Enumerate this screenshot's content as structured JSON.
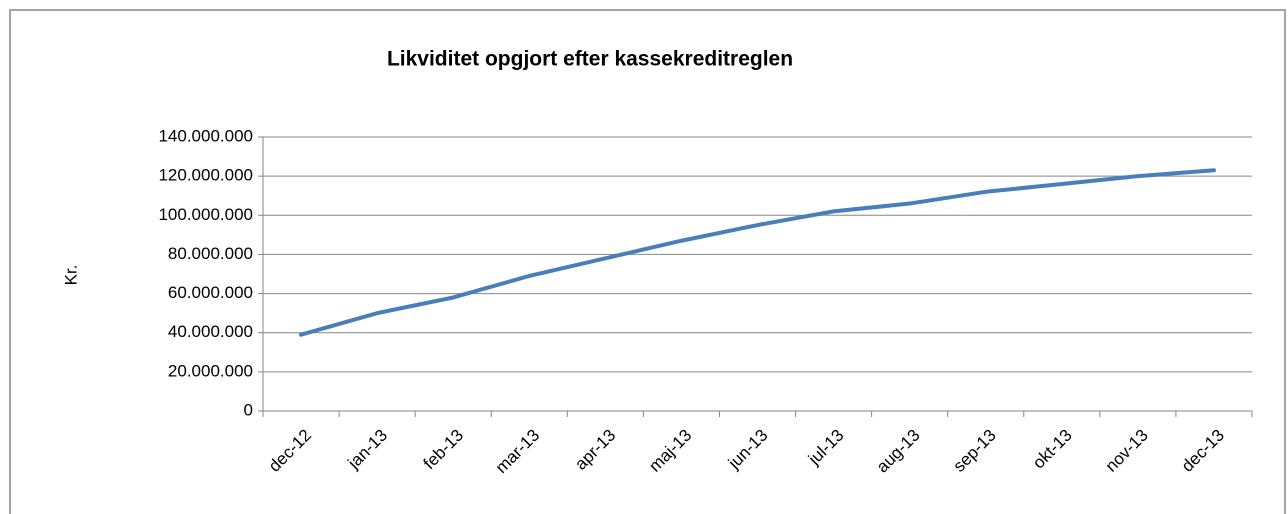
{
  "chart_data": {
    "type": "line",
    "title": "Likviditet opgjort efter kassekreditreglen",
    "y_label": "Kr.",
    "categories": [
      "dec-12",
      "jan-13",
      "feb-13",
      "mar-13",
      "apr-13",
      "maj-13",
      "jun-13",
      "jul-13",
      "aug-13",
      "sep-13",
      "okt-13",
      "nov-13",
      "dec-13"
    ],
    "series": [
      {
        "color": "#4a7ebb",
        "values": [
          39000000,
          50000000,
          58000000,
          69000000,
          78000000,
          87000000,
          95000000,
          102000000,
          106000000,
          112000000,
          116000000,
          120000000,
          123000000
        ]
      }
    ],
    "ylim": [
      0,
      140000000
    ],
    "yticks": [
      0,
      {
        "value": 20000000,
        "label": "20.000.000"
      },
      {
        "value": 40000000,
        "label": "40.000.000"
      },
      {
        "value": 60000000,
        "label": "60.000.000"
      },
      {
        "value": 80000000,
        "label": "80.000.000"
      },
      {
        "value": 100000000,
        "label": "100.000.000"
      },
      {
        "value": 120000000,
        "label": "120.000.000"
      },
      {
        "value": 140000000,
        "label": "140.000.000"
      }
    ],
    "grid": true
  }
}
